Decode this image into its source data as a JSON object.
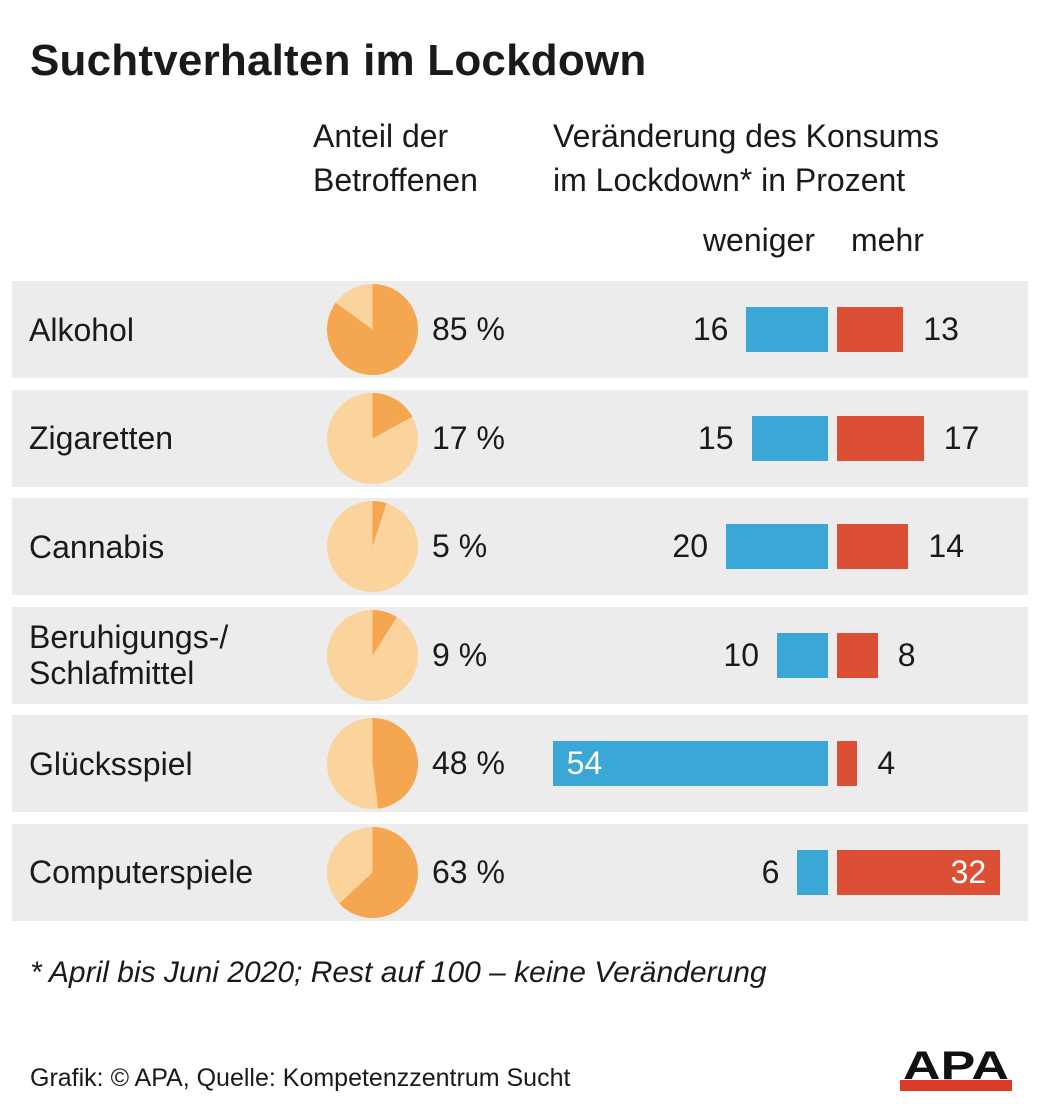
{
  "title": "Suchtverhalten im Lockdown",
  "headers": {
    "share_line1": "Anteil der",
    "share_line2": "Betroffenen",
    "change_line1": "Veränderung des Konsums",
    "change_line2": "im Lockdown* in Prozent",
    "less": "weniger",
    "more": "mehr"
  },
  "colors": {
    "pie_share": "#f5a651",
    "pie_rest": "#fbd39d",
    "less": "#3aa7d7",
    "more": "#dd4f35",
    "row_bg": "#ececec"
  },
  "chart_data": {
    "type": "bar",
    "categories": [
      "Alkohol",
      "Zigaretten",
      "Cannabis",
      "Beruhigungs-/ Schlafmittel",
      "Glücksspiel",
      "Computerspiele"
    ],
    "rows": [
      {
        "label_lines": [
          "Alkohol"
        ],
        "share": 85,
        "share_text": "85 %",
        "less": 16,
        "more": 13
      },
      {
        "label_lines": [
          "Zigaretten"
        ],
        "share": 17,
        "share_text": "17 %",
        "less": 15,
        "more": 17
      },
      {
        "label_lines": [
          "Cannabis"
        ],
        "share": 5,
        "share_text": "5 %",
        "less": 20,
        "more": 14
      },
      {
        "label_lines": [
          "Beruhigungs-/",
          "Schlafmittel"
        ],
        "share": 9,
        "share_text": "9 %",
        "less": 10,
        "more": 8
      },
      {
        "label_lines": [
          "Glücksspiel"
        ],
        "share": 48,
        "share_text": "48 %",
        "less": 54,
        "more": 4
      },
      {
        "label_lines": [
          "Computerspiele"
        ],
        "share": 63,
        "share_text": "63 %",
        "less": 6,
        "more": 32
      }
    ],
    "series": [
      {
        "name": "weniger",
        "values": [
          16,
          15,
          20,
          10,
          54,
          6
        ]
      },
      {
        "name": "mehr",
        "values": [
          13,
          17,
          14,
          8,
          4,
          32
        ]
      }
    ]
  },
  "footnote": "* April bis Juni 2020; Rest auf 100 – keine Veränderung",
  "credit": "Grafik: © APA, Quelle: Kompetenzzentrum Sucht",
  "logo_text": "APA"
}
